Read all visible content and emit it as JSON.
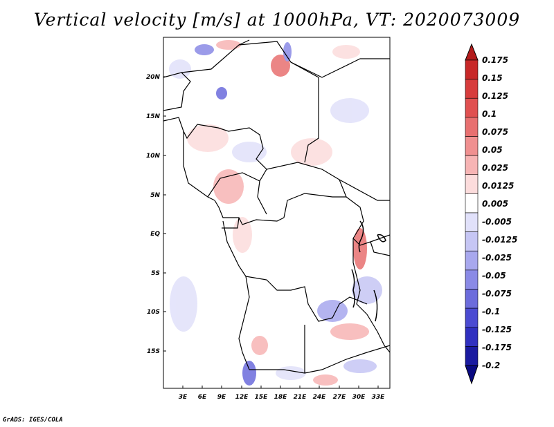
{
  "title": "Vertical velocity [m/s] at 1000hPa, VT: 2020073009",
  "footer": "GrADS: IGES/COLA",
  "map": {
    "lat_labels": [
      "20N",
      "15N",
      "10N",
      "5N",
      "EQ",
      "5S",
      "10S",
      "15S"
    ],
    "lon_labels": [
      "3E",
      "6E",
      "9E",
      "12E",
      "15E",
      "18E",
      "21E",
      "24E",
      "27E",
      "30E",
      "33E"
    ]
  },
  "colorbar": {
    "labels": [
      "0.175",
      "0.15",
      "0.125",
      "0.1",
      "0.075",
      "0.05",
      "0.025",
      "0.0125",
      "0.005",
      "-0.005",
      "-0.0125",
      "-0.025",
      "-0.05",
      "-0.075",
      "-0.1",
      "-0.125",
      "-0.175",
      "-0.2"
    ],
    "colors": [
      "#b41c1c",
      "#c82828",
      "#d73c3c",
      "#e05050",
      "#e87070",
      "#f09090",
      "#f7b4b4",
      "#fcdcdc",
      "#ffffff",
      "#e1e1fa",
      "#c6c6f4",
      "#a8a8ee",
      "#8a8ae6",
      "#6c6cdc",
      "#4b4bd2",
      "#3030c0",
      "#1a1aa0",
      "#0a0a82"
    ],
    "top_cap_color": "#b41c1c",
    "bottom_cap_color": "#0a0a82"
  }
}
